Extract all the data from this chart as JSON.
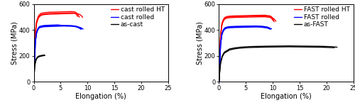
{
  "left_panel": {
    "xlabel": "Elongation (%)",
    "ylabel": "Stress (MPa)",
    "xlim": [
      0,
      25
    ],
    "ylim": [
      0,
      600
    ],
    "xticks": [
      0,
      5,
      10,
      15,
      20,
      25
    ],
    "yticks": [
      0,
      200,
      400,
      600
    ],
    "legend": [
      "cast rolled HT",
      "cast rolled",
      "as-cast"
    ],
    "colors": [
      "#FF0000",
      "#0000FF",
      "#000000"
    ],
    "curves": {
      "red": [
        {
          "x": [
            0,
            0.15,
            0.3,
            0.5,
            0.7,
            0.9,
            1.1,
            1.4,
            2.0,
            3.0,
            4.5,
            6.0,
            7.0,
            7.5,
            7.8,
            8.0,
            8.3,
            8.5
          ],
          "y": [
            0,
            200,
            380,
            460,
            490,
            510,
            520,
            530,
            535,
            538,
            540,
            542,
            543,
            542,
            538,
            530,
            515,
            500
          ]
        },
        {
          "x": [
            0,
            0.15,
            0.3,
            0.5,
            0.7,
            0.9,
            1.1,
            1.4,
            2.0,
            3.0,
            4.5,
            6.0,
            7.0,
            7.5,
            7.8,
            8.0,
            8.2
          ],
          "y": [
            0,
            190,
            370,
            450,
            480,
            500,
            510,
            520,
            525,
            528,
            530,
            532,
            533,
            532,
            528,
            518,
            505
          ]
        },
        {
          "x": [
            0,
            0.15,
            0.3,
            0.5,
            0.7,
            0.9,
            1.1,
            1.4,
            2.0,
            3.0,
            4.5,
            6.0,
            7.0,
            7.8,
            8.2,
            8.6,
            8.9,
            9.1
          ],
          "y": [
            0,
            185,
            365,
            445,
            475,
            495,
            505,
            515,
            520,
            523,
            525,
            527,
            528,
            529,
            526,
            520,
            510,
            498
          ]
        }
      ],
      "blue": [
        {
          "x": [
            0,
            0.15,
            0.3,
            0.5,
            0.7,
            0.9,
            1.1,
            1.5,
            2.0,
            3.0,
            4.5,
            6.0,
            7.0,
            7.5,
            8.0,
            8.5,
            8.8
          ],
          "y": [
            0,
            160,
            310,
            380,
            405,
            420,
            428,
            433,
            436,
            438,
            440,
            432,
            430,
            428,
            424,
            415,
            405
          ]
        },
        {
          "x": [
            0,
            0.15,
            0.3,
            0.5,
            0.7,
            0.9,
            1.1,
            1.5,
            2.0,
            3.0,
            4.5,
            6.0,
            7.0,
            7.5,
            8.0,
            8.5,
            9.0
          ],
          "y": [
            0,
            150,
            300,
            370,
            395,
            410,
            418,
            423,
            426,
            428,
            430,
            432,
            433,
            432,
            428,
            420,
            410
          ]
        },
        {
          "x": [
            0,
            0.15,
            0.3,
            0.5,
            0.7,
            0.9,
            1.1,
            1.5,
            2.0,
            3.0,
            4.5,
            6.0,
            7.0,
            7.5,
            8.0,
            8.8,
            9.2
          ],
          "y": [
            0,
            155,
            305,
            375,
            400,
            415,
            423,
            428,
            431,
            433,
            435,
            436,
            434,
            432,
            428,
            418,
            408
          ]
        }
      ],
      "black": [
        {
          "x": [
            0,
            0.1,
            0.2,
            0.35,
            0.5,
            0.65,
            0.8,
            1.0,
            1.2,
            1.5,
            1.8,
            2.0
          ],
          "y": [
            0,
            70,
            130,
            165,
            180,
            190,
            196,
            200,
            202,
            205,
            207,
            208
          ]
        },
        {
          "x": [
            0,
            0.1,
            0.2,
            0.35,
            0.5,
            0.65,
            0.8,
            1.0,
            1.2,
            1.5,
            1.8,
            2.1
          ],
          "y": [
            0,
            65,
            125,
            158,
            174,
            184,
            190,
            194,
            197,
            200,
            202,
            204
          ]
        }
      ]
    }
  },
  "right_panel": {
    "xlabel": "Elongation (%)",
    "ylabel": "Stress (MPa)",
    "xlim": [
      0,
      25
    ],
    "ylim": [
      0,
      600
    ],
    "xticks": [
      0,
      5,
      10,
      15,
      20,
      25
    ],
    "yticks": [
      0,
      200,
      400,
      600
    ],
    "legend": [
      "FAST rolled HT",
      "FAST rolled",
      "as-FAST"
    ],
    "colors": [
      "#FF0000",
      "#0000FF",
      "#000000"
    ],
    "curves": {
      "red": [
        {
          "x": [
            0,
            0.15,
            0.3,
            0.5,
            0.7,
            0.9,
            1.1,
            1.5,
            2.0,
            3.0,
            5.0,
            7.0,
            8.5,
            9.5,
            9.8,
            10.0,
            10.2
          ],
          "y": [
            0,
            180,
            360,
            440,
            470,
            488,
            498,
            505,
            508,
            510,
            512,
            514,
            515,
            510,
            502,
            490,
            478
          ]
        },
        {
          "x": [
            0,
            0.15,
            0.3,
            0.5,
            0.7,
            0.9,
            1.1,
            1.5,
            2.0,
            3.0,
            5.0,
            7.0,
            8.5,
            9.5,
            9.8,
            10.0,
            10.3
          ],
          "y": [
            0,
            170,
            348,
            428,
            458,
            476,
            486,
            493,
            496,
            498,
            500,
            502,
            503,
            498,
            490,
            478,
            465
          ]
        },
        {
          "x": [
            0,
            0.15,
            0.3,
            0.5,
            0.7,
            0.9,
            1.1,
            1.5,
            2.0,
            3.0,
            5.0,
            7.0,
            8.5,
            9.5,
            10.0,
            10.4,
            10.6
          ],
          "y": [
            0,
            175,
            354,
            434,
            464,
            482,
            492,
            499,
            502,
            504,
            506,
            508,
            509,
            504,
            494,
            480,
            468
          ]
        }
      ],
      "blue": [
        {
          "x": [
            0,
            0.15,
            0.3,
            0.5,
            0.7,
            0.9,
            1.1,
            1.5,
            2.0,
            3.0,
            5.0,
            7.0,
            8.0,
            9.0,
            9.5
          ],
          "y": [
            0,
            150,
            295,
            365,
            392,
            408,
            418,
            424,
            427,
            429,
            431,
            432,
            430,
            424,
            415
          ]
        },
        {
          "x": [
            0,
            0.15,
            0.3,
            0.5,
            0.7,
            0.9,
            1.1,
            1.5,
            2.0,
            3.0,
            5.0,
            7.0,
            8.0,
            9.0,
            9.6
          ],
          "y": [
            0,
            143,
            285,
            356,
            382,
            398,
            408,
            415,
            418,
            420,
            422,
            424,
            422,
            416,
            406
          ]
        },
        {
          "x": [
            0,
            0.15,
            0.3,
            0.5,
            0.7,
            0.9,
            1.1,
            1.5,
            2.0,
            3.0,
            5.0,
            7.0,
            8.0,
            9.0,
            9.8
          ],
          "y": [
            0,
            147,
            290,
            360,
            387,
            403,
            413,
            420,
            423,
            425,
            427,
            428,
            426,
            420,
            410
          ]
        }
      ],
      "black": [
        {
          "x": [
            0,
            0.15,
            0.3,
            0.6,
            1.0,
            2.0,
            3.0,
            4.0,
            5.0,
            6.0,
            7.0,
            8.0,
            9.0,
            11.0,
            13.0,
            15.0,
            17.0,
            19.0,
            21.0,
            22.0
          ],
          "y": [
            0,
            85,
            150,
            200,
            230,
            255,
            263,
            268,
            271,
            273,
            274,
            275,
            276,
            277,
            278,
            277,
            276,
            275,
            272,
            268
          ]
        },
        {
          "x": [
            0,
            0.15,
            0.3,
            0.6,
            1.0,
            2.0,
            3.0,
            4.0,
            5.0,
            6.0,
            7.0,
            8.0,
            9.0,
            11.0,
            13.0,
            15.0,
            17.0,
            19.0,
            21.5
          ],
          "y": [
            0,
            80,
            143,
            193,
            222,
            247,
            256,
            261,
            264,
            266,
            267,
            268,
            269,
            270,
            271,
            270,
            269,
            268,
            264
          ]
        }
      ]
    }
  },
  "line_width": 1.0,
  "font_size_label": 7,
  "font_size_tick": 6,
  "font_size_legend": 6.5
}
